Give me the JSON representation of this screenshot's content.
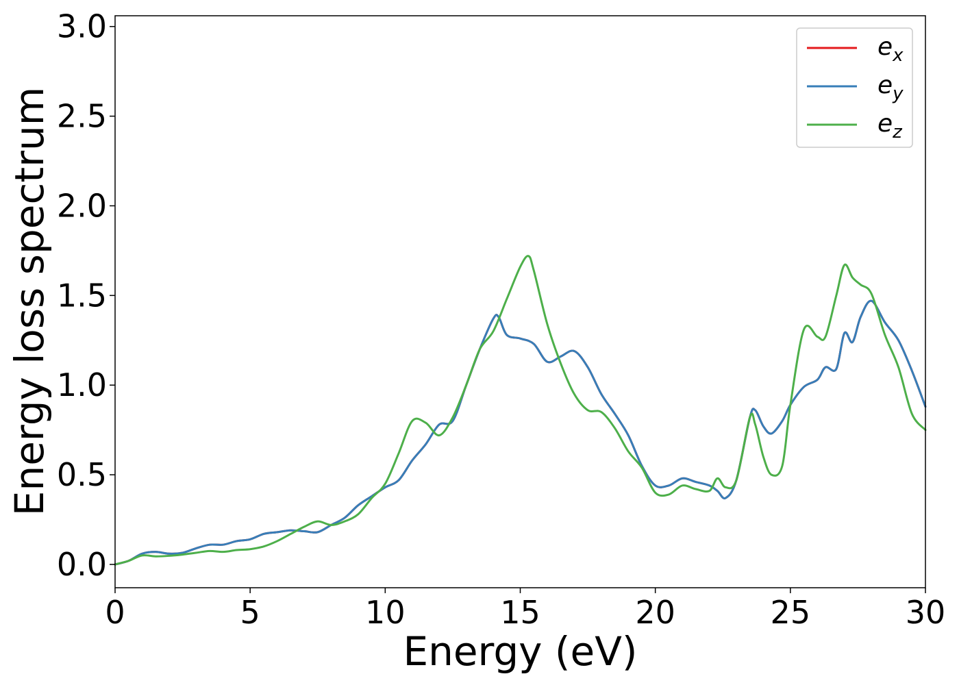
{
  "chart_data": {
    "type": "line",
    "title": "",
    "xlabel": "Energy (eV)",
    "ylabel": "Energy loss spectrum",
    "xlim": [
      0,
      30
    ],
    "ylim": [
      -0.13,
      3.06
    ],
    "xticks": [
      0,
      5,
      10,
      15,
      20,
      25,
      30
    ],
    "xtick_labels": [
      "0",
      "5",
      "10",
      "15",
      "20",
      "25",
      "30"
    ],
    "yticks": [
      0.0,
      0.5,
      1.0,
      1.5,
      2.0,
      2.5,
      3.0
    ],
    "ytick_labels": [
      "0.0",
      "0.5",
      "1.0",
      "1.5",
      "2.0",
      "2.5",
      "3.0"
    ],
    "grid": false,
    "legend_position": "top-right",
    "series": [
      {
        "name": "e_x",
        "legend_base": "e",
        "legend_sub": "x",
        "color": "#e41a1c",
        "x": [
          0,
          0.5,
          1.0,
          1.5,
          2.0,
          2.5,
          3.0,
          3.5,
          4.0,
          4.5,
          5.0,
          5.5,
          6.0,
          6.5,
          7.0,
          7.5,
          8.0,
          8.5,
          9.0,
          9.5,
          10.0,
          10.5,
          11.0,
          11.5,
          12.0,
          12.5,
          13.0,
          13.5,
          14.0,
          14.2,
          14.5,
          15.0,
          15.5,
          16.0,
          16.5,
          17.0,
          17.5,
          18.0,
          18.5,
          19.0,
          19.5,
          20.0,
          20.5,
          21.0,
          21.5,
          22.0,
          22.3,
          22.6,
          23.0,
          23.5,
          23.7,
          24.0,
          24.3,
          24.7,
          25.0,
          25.5,
          26.0,
          26.3,
          26.7,
          27.0,
          27.3,
          27.6,
          28.0,
          28.5,
          29.0,
          29.5,
          30.0
        ],
        "y": [
          0.0,
          0.02,
          0.06,
          0.07,
          0.06,
          0.065,
          0.09,
          0.11,
          0.11,
          0.13,
          0.14,
          0.17,
          0.18,
          0.19,
          0.185,
          0.18,
          0.22,
          0.26,
          0.33,
          0.38,
          0.43,
          0.47,
          0.58,
          0.67,
          0.78,
          0.8,
          1.0,
          1.2,
          1.37,
          1.38,
          1.28,
          1.26,
          1.23,
          1.13,
          1.16,
          1.19,
          1.1,
          0.95,
          0.84,
          0.72,
          0.55,
          0.44,
          0.44,
          0.48,
          0.46,
          0.44,
          0.41,
          0.37,
          0.47,
          0.82,
          0.86,
          0.77,
          0.73,
          0.8,
          0.89,
          0.99,
          1.03,
          1.1,
          1.09,
          1.29,
          1.24,
          1.38,
          1.47,
          1.35,
          1.25,
          1.08,
          0.88
        ]
      },
      {
        "name": "e_y",
        "legend_base": "e",
        "legend_sub": "y",
        "color": "#377eb8",
        "x": [
          0,
          0.5,
          1.0,
          1.5,
          2.0,
          2.5,
          3.0,
          3.5,
          4.0,
          4.5,
          5.0,
          5.5,
          6.0,
          6.5,
          7.0,
          7.5,
          8.0,
          8.5,
          9.0,
          9.5,
          10.0,
          10.5,
          11.0,
          11.5,
          12.0,
          12.5,
          13.0,
          13.5,
          14.0,
          14.2,
          14.5,
          15.0,
          15.5,
          16.0,
          16.5,
          17.0,
          17.5,
          18.0,
          18.5,
          19.0,
          19.5,
          20.0,
          20.5,
          21.0,
          21.5,
          22.0,
          22.3,
          22.6,
          23.0,
          23.5,
          23.7,
          24.0,
          24.3,
          24.7,
          25.0,
          25.5,
          26.0,
          26.3,
          26.7,
          27.0,
          27.3,
          27.6,
          28.0,
          28.5,
          29.0,
          29.5,
          30.0
        ],
        "y": [
          0.0,
          0.02,
          0.06,
          0.07,
          0.06,
          0.065,
          0.09,
          0.11,
          0.11,
          0.13,
          0.14,
          0.17,
          0.18,
          0.19,
          0.185,
          0.18,
          0.22,
          0.26,
          0.33,
          0.38,
          0.43,
          0.47,
          0.58,
          0.67,
          0.78,
          0.8,
          1.0,
          1.2,
          1.37,
          1.38,
          1.28,
          1.26,
          1.23,
          1.13,
          1.16,
          1.19,
          1.1,
          0.95,
          0.84,
          0.72,
          0.55,
          0.44,
          0.44,
          0.48,
          0.46,
          0.44,
          0.41,
          0.37,
          0.47,
          0.82,
          0.86,
          0.77,
          0.73,
          0.8,
          0.89,
          0.99,
          1.03,
          1.1,
          1.09,
          1.29,
          1.24,
          1.38,
          1.47,
          1.35,
          1.25,
          1.08,
          0.88
        ]
      },
      {
        "name": "e_z",
        "legend_base": "e",
        "legend_sub": "z",
        "color": "#4daf4a",
        "x": [
          0,
          0.5,
          1.0,
          1.5,
          2.0,
          2.5,
          3.0,
          3.5,
          4.0,
          4.5,
          5.0,
          5.5,
          6.0,
          6.5,
          7.0,
          7.5,
          8.0,
          8.5,
          9.0,
          9.5,
          10.0,
          10.5,
          11.0,
          11.5,
          12.0,
          12.5,
          13.0,
          13.5,
          14.0,
          14.5,
          15.0,
          15.3,
          15.5,
          16.0,
          16.5,
          17.0,
          17.5,
          18.0,
          18.5,
          19.0,
          19.5,
          20.0,
          20.5,
          21.0,
          21.5,
          22.0,
          22.3,
          22.6,
          23.0,
          23.5,
          23.7,
          24.0,
          24.3,
          24.7,
          25.0,
          25.5,
          26.0,
          26.3,
          26.7,
          27.0,
          27.3,
          27.6,
          28.0,
          28.5,
          29.0,
          29.5,
          30.0
        ],
        "y": [
          0.0,
          0.02,
          0.05,
          0.045,
          0.048,
          0.055,
          0.065,
          0.075,
          0.07,
          0.08,
          0.085,
          0.1,
          0.13,
          0.17,
          0.21,
          0.24,
          0.22,
          0.24,
          0.28,
          0.37,
          0.45,
          0.62,
          0.8,
          0.79,
          0.72,
          0.82,
          1.0,
          1.2,
          1.3,
          1.48,
          1.66,
          1.72,
          1.64,
          1.34,
          1.12,
          0.95,
          0.86,
          0.85,
          0.76,
          0.63,
          0.54,
          0.4,
          0.39,
          0.44,
          0.42,
          0.41,
          0.48,
          0.43,
          0.47,
          0.82,
          0.78,
          0.6,
          0.5,
          0.55,
          0.89,
          1.31,
          1.27,
          1.27,
          1.5,
          1.67,
          1.6,
          1.56,
          1.51,
          1.28,
          1.1,
          0.84,
          0.75
        ]
      }
    ]
  }
}
